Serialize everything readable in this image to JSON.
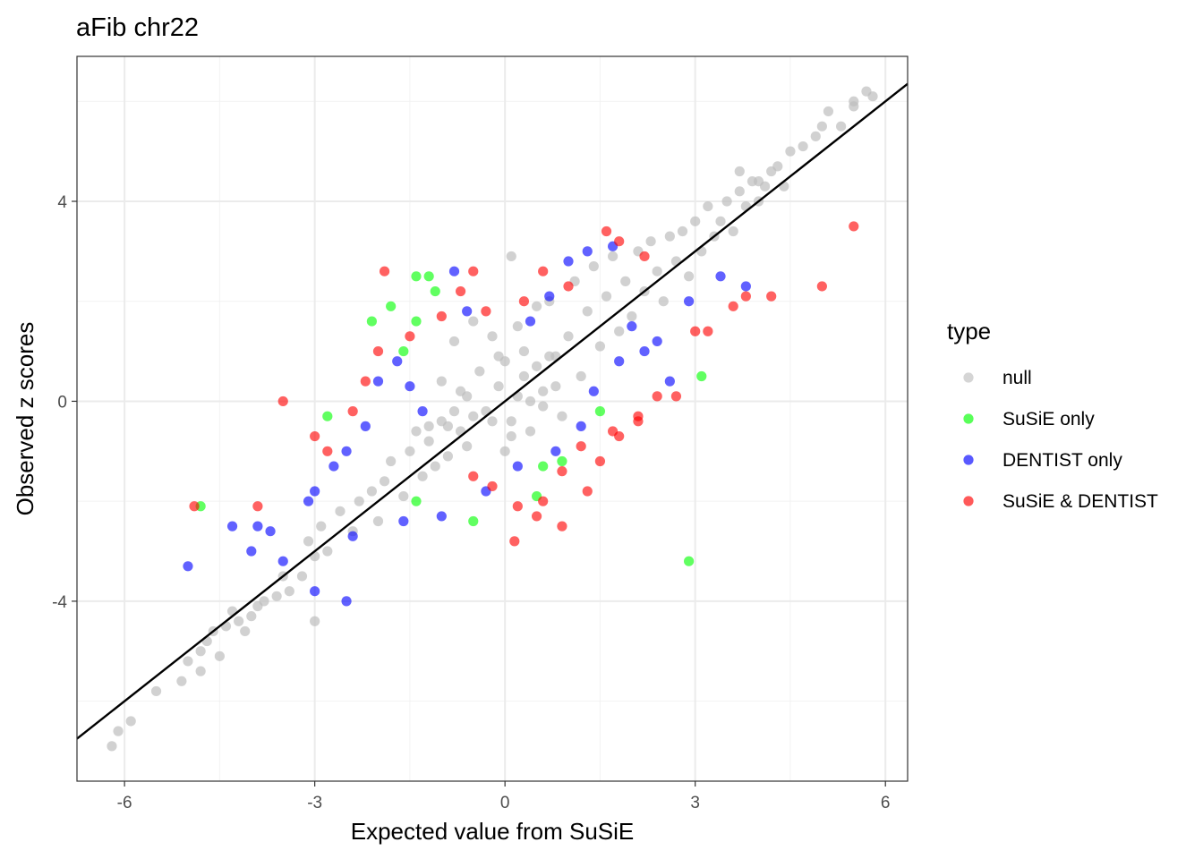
{
  "chart_data": {
    "type": "scatter",
    "title": "aFib chr22",
    "xlabel": "Expected value from SuSiE",
    "ylabel": "Observed z scores",
    "xlim": [
      -6.75,
      6.35
    ],
    "ylim": [
      -7.6,
      6.9
    ],
    "x_ticks": [
      -6,
      -3,
      0,
      3,
      6
    ],
    "x_tick_labels": [
      "-6",
      "-3",
      "0",
      "3",
      "6"
    ],
    "y_ticks": [
      -4,
      0,
      4
    ],
    "y_tick_labels": [
      "-4",
      "0",
      "4"
    ],
    "grid": true,
    "reference_line": {
      "intercept": 0,
      "slope": 1
    },
    "legend": {
      "title": "type",
      "position": "right",
      "entries": [
        {
          "key": "null",
          "label": "null",
          "color": "#bebebe"
        },
        {
          "key": "susie",
          "label": "SuSiE only",
          "color": "#00ff00"
        },
        {
          "key": "dentist",
          "label": "DENTIST only",
          "color": "#0000ff"
        },
        {
          "key": "both",
          "label": "SuSiE & DENTIST",
          "color": "#ff0000"
        }
      ]
    },
    "series": [
      {
        "name": "null",
        "color": "#bebebe",
        "points": [
          [
            -6.2,
            -6.9
          ],
          [
            -6.1,
            -6.6
          ],
          [
            -5.9,
            -6.4
          ],
          [
            -5.5,
            -5.8
          ],
          [
            -5.1,
            -5.6
          ],
          [
            -5.0,
            -5.2
          ],
          [
            -4.8,
            -5.0
          ],
          [
            -4.7,
            -4.8
          ],
          [
            -4.6,
            -4.6
          ],
          [
            -4.4,
            -4.5
          ],
          [
            -4.2,
            -4.4
          ],
          [
            -4.3,
            -4.2
          ],
          [
            -4.0,
            -4.3
          ],
          [
            -3.9,
            -4.1
          ],
          [
            -3.8,
            -4.0
          ],
          [
            -3.6,
            -3.9
          ],
          [
            -3.5,
            -3.5
          ],
          [
            -3.4,
            -3.8
          ],
          [
            -3.2,
            -3.5
          ],
          [
            -3.0,
            -3.1
          ],
          [
            -3.0,
            -4.4
          ],
          [
            -3.1,
            -2.8
          ],
          [
            -2.9,
            -2.5
          ],
          [
            -2.8,
            -3.0
          ],
          [
            -2.6,
            -2.2
          ],
          [
            -2.4,
            -2.6
          ],
          [
            -2.3,
            -2.0
          ],
          [
            -2.1,
            -1.8
          ],
          [
            -2.0,
            -2.4
          ],
          [
            -1.9,
            -1.6
          ],
          [
            -1.8,
            -1.2
          ],
          [
            -1.6,
            -1.9
          ],
          [
            -1.5,
            -1.0
          ],
          [
            -1.4,
            -0.6
          ],
          [
            -1.3,
            -1.5
          ],
          [
            -1.2,
            -0.8
          ],
          [
            -1.0,
            0.4
          ],
          [
            -0.9,
            -0.5
          ],
          [
            -0.8,
            1.2
          ],
          [
            -0.7,
            0.2
          ],
          [
            -0.6,
            -0.9
          ],
          [
            -0.5,
            1.6
          ],
          [
            -0.4,
            0.6
          ],
          [
            -0.3,
            -0.2
          ],
          [
            -0.2,
            1.3
          ],
          [
            -0.1,
            0.3
          ],
          [
            0.0,
            0.8
          ],
          [
            0.0,
            -1.0
          ],
          [
            0.1,
            2.9
          ],
          [
            0.1,
            -0.4
          ],
          [
            0.2,
            1.5
          ],
          [
            0.3,
            0.5
          ],
          [
            0.4,
            -0.6
          ],
          [
            0.5,
            1.9
          ],
          [
            0.6,
            0.2
          ],
          [
            0.7,
            2.0
          ],
          [
            0.8,
            0.9
          ],
          [
            0.9,
            -0.3
          ],
          [
            1.0,
            1.3
          ],
          [
            1.1,
            2.4
          ],
          [
            1.2,
            0.5
          ],
          [
            1.3,
            1.8
          ],
          [
            1.4,
            2.7
          ],
          [
            1.5,
            1.1
          ],
          [
            1.6,
            2.1
          ],
          [
            1.7,
            2.9
          ],
          [
            1.8,
            1.4
          ],
          [
            1.9,
            2.4
          ],
          [
            2.0,
            1.7
          ],
          [
            2.1,
            3.0
          ],
          [
            2.2,
            2.2
          ],
          [
            2.3,
            3.2
          ],
          [
            2.4,
            2.6
          ],
          [
            2.5,
            2.0
          ],
          [
            2.6,
            3.3
          ],
          [
            2.7,
            2.8
          ],
          [
            2.8,
            3.4
          ],
          [
            2.9,
            2.5
          ],
          [
            3.0,
            3.6
          ],
          [
            3.1,
            3.0
          ],
          [
            3.2,
            3.9
          ],
          [
            3.3,
            3.3
          ],
          [
            3.4,
            3.6
          ],
          [
            3.5,
            4.0
          ],
          [
            3.6,
            3.4
          ],
          [
            3.7,
            4.2
          ],
          [
            3.8,
            3.9
          ],
          [
            3.9,
            4.4
          ],
          [
            4.0,
            4.0
          ],
          [
            4.1,
            4.3
          ],
          [
            4.2,
            4.6
          ],
          [
            4.4,
            4.3
          ],
          [
            4.5,
            5.0
          ],
          [
            4.7,
            5.1
          ],
          [
            4.9,
            5.3
          ],
          [
            5.0,
            5.5
          ],
          [
            5.1,
            5.8
          ],
          [
            5.3,
            5.5
          ],
          [
            5.5,
            6.0
          ],
          [
            5.7,
            6.2
          ],
          [
            5.8,
            6.1
          ],
          [
            5.5,
            5.9
          ],
          [
            3.7,
            4.6
          ],
          [
            4.0,
            4.4
          ],
          [
            4.3,
            4.7
          ],
          [
            -4.8,
            -5.4
          ],
          [
            -4.5,
            -5.1
          ],
          [
            -4.1,
            -4.6
          ],
          [
            0.1,
            -0.7
          ],
          [
            -0.1,
            0.9
          ],
          [
            0.2,
            0.1
          ],
          [
            -0.2,
            -0.4
          ],
          [
            0.3,
            1.0
          ],
          [
            0.4,
            0.0
          ],
          [
            0.5,
            0.7
          ],
          [
            0.6,
            -0.1
          ],
          [
            0.7,
            0.9
          ],
          [
            0.8,
            0.3
          ],
          [
            -0.5,
            -0.3
          ],
          [
            -0.6,
            0.1
          ],
          [
            -0.7,
            -0.6
          ],
          [
            -0.8,
            -0.2
          ],
          [
            -0.9,
            -1.1
          ],
          [
            -1.0,
            -0.4
          ],
          [
            -1.1,
            -1.3
          ],
          [
            -1.2,
            -0.5
          ]
        ]
      },
      {
        "name": "SuSiE only",
        "color": "#00ff00",
        "points": [
          [
            -1.4,
            2.5
          ],
          [
            -1.2,
            2.5
          ],
          [
            -1.1,
            2.2
          ],
          [
            -1.8,
            1.9
          ],
          [
            -2.1,
            1.6
          ],
          [
            -1.4,
            1.6
          ],
          [
            -1.6,
            1.0
          ],
          [
            -2.8,
            -0.3
          ],
          [
            -4.8,
            -2.1
          ],
          [
            -1.4,
            -2.0
          ],
          [
            -0.5,
            -2.4
          ],
          [
            0.5,
            -1.9
          ],
          [
            0.6,
            -1.3
          ],
          [
            0.9,
            -1.2
          ],
          [
            2.9,
            -3.2
          ],
          [
            3.1,
            0.5
          ],
          [
            1.5,
            -0.2
          ]
        ]
      },
      {
        "name": "DENTIST only",
        "color": "#0000ff",
        "points": [
          [
            -5.0,
            -3.3
          ],
          [
            -4.3,
            -2.5
          ],
          [
            -4.0,
            -3.0
          ],
          [
            -3.9,
            -2.5
          ],
          [
            -3.7,
            -2.6
          ],
          [
            -3.5,
            -3.2
          ],
          [
            -3.0,
            -1.8
          ],
          [
            -2.7,
            -1.3
          ],
          [
            -2.5,
            -1.0
          ],
          [
            -2.2,
            -0.5
          ],
          [
            -2.0,
            0.4
          ],
          [
            -1.7,
            0.8
          ],
          [
            -1.5,
            0.3
          ],
          [
            -1.3,
            -0.2
          ],
          [
            -0.8,
            2.6
          ],
          [
            -0.6,
            1.8
          ],
          [
            0.4,
            1.6
          ],
          [
            0.7,
            2.1
          ],
          [
            1.0,
            2.8
          ],
          [
            1.3,
            3.0
          ],
          [
            1.7,
            3.1
          ],
          [
            2.0,
            1.5
          ],
          [
            2.2,
            1.0
          ],
          [
            2.4,
            1.2
          ],
          [
            2.9,
            2.0
          ],
          [
            3.4,
            2.5
          ],
          [
            3.8,
            2.3
          ],
          [
            1.4,
            0.2
          ],
          [
            1.2,
            -0.5
          ],
          [
            0.8,
            -1.0
          ],
          [
            0.2,
            -1.3
          ],
          [
            -0.3,
            -1.8
          ],
          [
            -1.0,
            -2.3
          ],
          [
            -1.6,
            -2.4
          ],
          [
            -2.4,
            -2.7
          ],
          [
            -3.0,
            -3.8
          ],
          [
            -2.5,
            -4.0
          ],
          [
            -3.1,
            -2.0
          ],
          [
            1.8,
            0.8
          ],
          [
            2.6,
            0.4
          ]
        ]
      },
      {
        "name": "SuSiE & DENTIST",
        "color": "#ff0000",
        "points": [
          [
            -4.9,
            -2.1
          ],
          [
            -3.9,
            -2.1
          ],
          [
            -3.5,
            0.0
          ],
          [
            -3.0,
            -0.7
          ],
          [
            -2.8,
            -1.0
          ],
          [
            -2.4,
            -0.2
          ],
          [
            -2.2,
            0.4
          ],
          [
            -2.0,
            1.0
          ],
          [
            -1.9,
            2.6
          ],
          [
            -1.5,
            1.3
          ],
          [
            -1.0,
            1.7
          ],
          [
            -0.7,
            2.2
          ],
          [
            -0.5,
            2.6
          ],
          [
            -0.3,
            1.8
          ],
          [
            0.3,
            2.0
          ],
          [
            0.6,
            2.6
          ],
          [
            1.0,
            2.3
          ],
          [
            1.6,
            3.4
          ],
          [
            1.8,
            3.2
          ],
          [
            2.2,
            2.9
          ],
          [
            3.0,
            1.4
          ],
          [
            3.2,
            1.4
          ],
          [
            3.6,
            1.9
          ],
          [
            3.8,
            2.1
          ],
          [
            4.2,
            2.1
          ],
          [
            5.0,
            2.3
          ],
          [
            5.5,
            3.5
          ],
          [
            2.7,
            0.1
          ],
          [
            2.4,
            0.1
          ],
          [
            2.1,
            -0.4
          ],
          [
            1.8,
            -0.7
          ],
          [
            1.5,
            -1.2
          ],
          [
            1.2,
            -0.9
          ],
          [
            0.9,
            -1.4
          ],
          [
            0.6,
            -2.0
          ],
          [
            0.2,
            -2.1
          ],
          [
            -0.2,
            -1.7
          ],
          [
            -0.5,
            -1.5
          ],
          [
            0.9,
            -2.5
          ],
          [
            0.5,
            -2.3
          ],
          [
            1.3,
            -1.8
          ],
          [
            2.1,
            -0.3
          ],
          [
            1.7,
            -0.6
          ],
          [
            0.15,
            -2.8
          ]
        ]
      }
    ]
  }
}
